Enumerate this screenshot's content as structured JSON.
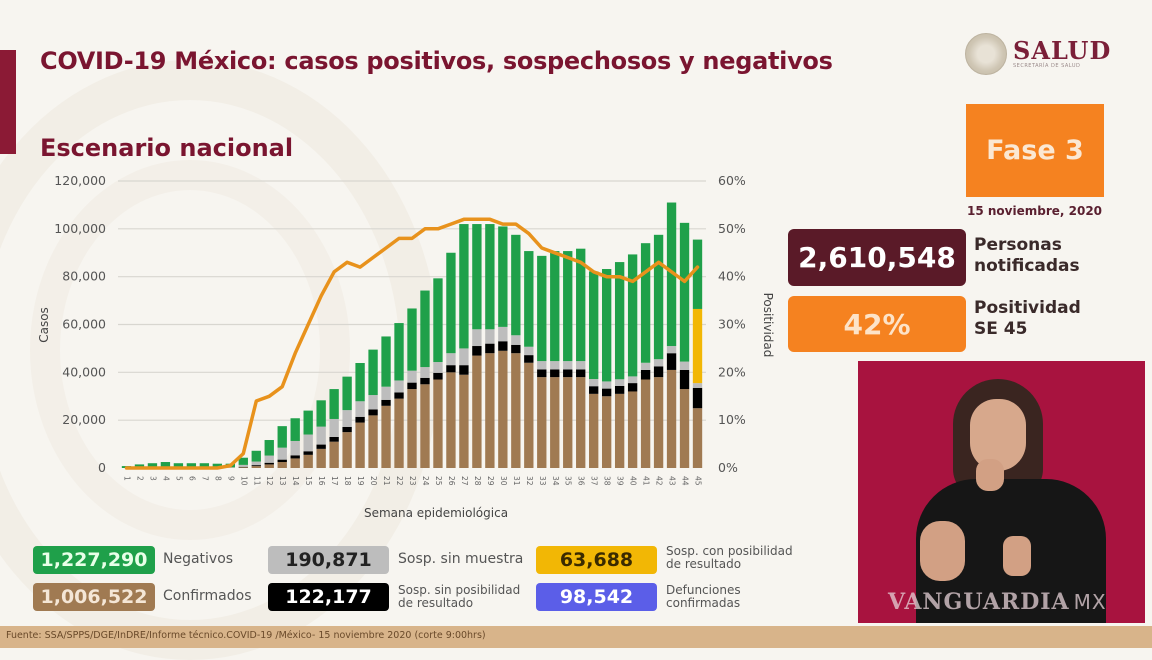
{
  "header": {
    "title": "COVID-19 México: casos positivos, sospechosos y negativos",
    "subtitle": "Escenario nacional",
    "logo_main": "SALUD",
    "logo_sub": "SECRETARÍA DE SALUD"
  },
  "phase": {
    "label": "Fase 3",
    "date": "15 noviembre, 2020"
  },
  "stats": {
    "notified_value": "2,610,548",
    "notified_label_1": "Personas",
    "notified_label_2": "notificadas",
    "positivity_value": "42%",
    "positivity_label_1": "Positividad",
    "positivity_label_2": "SE 45"
  },
  "legend": [
    {
      "value": "1,227,290",
      "label": "Negativos",
      "color": "#1fa04a"
    },
    {
      "value": "1,006,522",
      "label": "Confirmados",
      "color": "#a07a52"
    },
    {
      "value": "190,871",
      "label": "Sosp. sin muestra",
      "color": "#bdbdbd"
    },
    {
      "value": "122,177",
      "label_1": "Sosp. sin posibilidad",
      "label_2": "de resultado",
      "color": "#000000"
    },
    {
      "value": "63,688",
      "label_1": "Sosp. con posibilidad",
      "label_2": "de resultado",
      "color": "#f2b705"
    },
    {
      "value": "98,542",
      "label_1": "Defunciones",
      "label_2": "confirmadas",
      "color": "#5b5ee8"
    }
  ],
  "interpreter": {
    "watermark": "VANGUARDIA",
    "watermark_suffix": "MX"
  },
  "footer": {
    "source": "Fuente: SSA/SPPS/DGE/InDRE/Informe técnico.COVID-19 /México- 15 noviembre 2020 (corte 9:00hrs)"
  },
  "chart_data": {
    "type": "bar",
    "stacked": true,
    "title": "Escenario nacional",
    "xlabel": "Semana epidemiológica",
    "ylabel": "Casos",
    "y2label": "Positividad",
    "ylim": [
      0,
      120000
    ],
    "y2lim": [
      0,
      60
    ],
    "yticks": [
      "0",
      "20,000",
      "40,000",
      "60,000",
      "80,000",
      "100,000",
      "120,000"
    ],
    "y2ticks": [
      "0%",
      "10%",
      "20%",
      "30%",
      "40%",
      "50%",
      "60%"
    ],
    "grid": true,
    "categories": [
      "1",
      "2",
      "3",
      "4",
      "5",
      "6",
      "7",
      "8",
      "9",
      "10",
      "11",
      "12",
      "13",
      "14",
      "15",
      "16",
      "17",
      "18",
      "19",
      "20",
      "21",
      "22",
      "23",
      "24",
      "25",
      "26",
      "27",
      "28",
      "29",
      "30",
      "31",
      "32",
      "33",
      "34",
      "35",
      "36",
      "37",
      "38",
      "39",
      "40",
      "41",
      "42",
      "43",
      "44",
      "45"
    ],
    "series": [
      {
        "name": "Confirmados",
        "color": "#a07a52",
        "values": [
          0,
          0,
          0,
          0,
          0,
          0,
          0,
          0,
          100,
          300,
          800,
          1500,
          2500,
          4000,
          5500,
          8000,
          11000,
          15000,
          19000,
          22000,
          26000,
          29000,
          33000,
          35000,
          37000,
          40000,
          39000,
          47000,
          48000,
          49000,
          48000,
          44000,
          38000,
          38000,
          38000,
          38000,
          31000,
          30000,
          31000,
          32000,
          37000,
          38000,
          41000,
          33000,
          25000
        ]
      },
      {
        "name": "Sosp. sin posibilidad de resultado",
        "color": "#000000",
        "values": [
          0,
          0,
          0,
          0,
          0,
          0,
          0,
          0,
          0,
          200,
          400,
          700,
          1000,
          1300,
          1500,
          1800,
          2000,
          2200,
          2400,
          2500,
          2500,
          2600,
          2700,
          2700,
          2800,
          3000,
          4000,
          4000,
          4000,
          4000,
          3500,
          3200,
          3200,
          3200,
          3200,
          3200,
          3200,
          3200,
          3300,
          3500,
          4000,
          4500,
          7000,
          8000,
          8500
        ]
      },
      {
        "name": "Sosp. sin muestra",
        "color": "#bdbdbd",
        "values": [
          0,
          0,
          0,
          0,
          0,
          0,
          0,
          0,
          200,
          800,
          1500,
          3000,
          5000,
          6000,
          7000,
          7500,
          7500,
          7000,
          6500,
          6000,
          5500,
          5000,
          5000,
          4500,
          4500,
          5000,
          7000,
          7000,
          6000,
          6000,
          4000,
          3500,
          3500,
          3500,
          3500,
          3500,
          3000,
          3000,
          2800,
          2800,
          3000,
          3000,
          3000,
          3500,
          2000
        ]
      },
      {
        "name": "Sosp. con posibilidad de resultado",
        "color": "#f2b705",
        "values": [
          0,
          0,
          0,
          0,
          0,
          0,
          0,
          0,
          0,
          0,
          0,
          0,
          0,
          0,
          0,
          0,
          0,
          0,
          0,
          0,
          0,
          0,
          0,
          0,
          0,
          0,
          0,
          0,
          0,
          0,
          0,
          0,
          0,
          0,
          0,
          0,
          0,
          0,
          0,
          0,
          0,
          0,
          0,
          0,
          31000
        ]
      },
      {
        "name": "Negativos",
        "color": "#1fa04a",
        "values": [
          800,
          1500,
          2000,
          2500,
          2000,
          2000,
          2000,
          1800,
          1500,
          3000,
          4500,
          6500,
          9000,
          9500,
          10000,
          11000,
          12500,
          14000,
          16000,
          19000,
          21000,
          24000,
          26000,
          32000,
          35000,
          42000,
          52000,
          44000,
          44000,
          42000,
          42000,
          40000,
          44000,
          46000,
          46000,
          47000,
          45000,
          47000,
          49000,
          51000,
          50000,
          52000,
          60000,
          58000,
          29000
        ]
      },
      {
        "name": "Positividad (%)",
        "type": "line",
        "axis": "y2",
        "color": "#e8921c",
        "values": [
          0,
          0,
          0,
          0,
          0,
          0,
          0,
          0,
          0.5,
          3,
          14,
          15,
          17,
          24,
          30,
          36,
          41,
          43,
          42,
          44,
          46,
          48,
          48,
          50,
          50,
          51,
          52,
          52,
          52,
          51,
          51,
          49,
          46,
          45,
          44,
          43,
          41,
          40,
          40,
          39,
          41,
          43,
          41,
          39,
          42
        ]
      }
    ]
  }
}
